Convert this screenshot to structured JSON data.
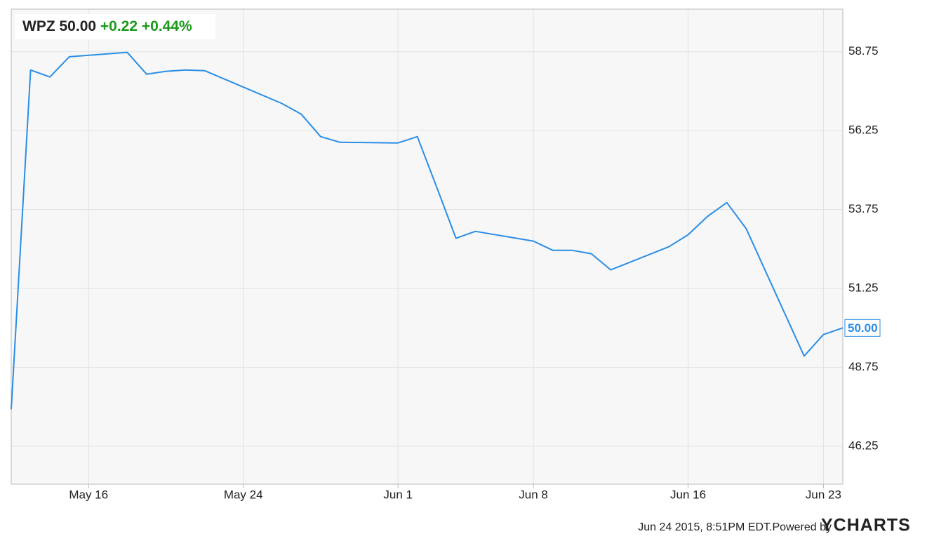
{
  "quote": {
    "symbol": "WPZ",
    "price": "50.00",
    "change": "+0.22",
    "change_percent": "+0.44%"
  },
  "chart_data": {
    "type": "line",
    "x": [
      "May 12",
      "May 13",
      "May 14",
      "May 15",
      "May 18",
      "May 19",
      "May 20",
      "May 21",
      "May 22",
      "May 26",
      "May 27",
      "May 28",
      "May 29",
      "Jun 1",
      "Jun 2",
      "Jun 3",
      "Jun 4",
      "Jun 5",
      "Jun 8",
      "Jun 9",
      "Jun 10",
      "Jun 11",
      "Jun 12",
      "Jun 15",
      "Jun 16",
      "Jun 17",
      "Jun 18",
      "Jun 19",
      "Jun 22",
      "Jun 23",
      "Jun 24"
    ],
    "series": [
      {
        "name": "WPZ",
        "color": "#2a8ee6",
        "values": [
          47.42,
          58.17,
          57.95,
          58.59,
          58.73,
          58.04,
          58.13,
          58.17,
          58.15,
          57.11,
          56.77,
          56.06,
          55.88,
          55.86,
          56.06,
          54.46,
          52.84,
          53.06,
          52.75,
          52.46,
          52.46,
          52.35,
          51.84,
          52.57,
          52.95,
          53.53,
          53.97,
          53.15,
          49.11,
          49.79,
          50.0
        ],
        "last_label": "50.00"
      }
    ],
    "xlim": [
      "May 12",
      "Jun 24"
    ],
    "xticks": [
      "May 16",
      "May 24",
      "Jun 1",
      "Jun 8",
      "Jun 16",
      "Jun 23"
    ],
    "ylim": [
      45.05,
      60.1
    ],
    "yticks": [
      46.25,
      48.75,
      51.25,
      53.75,
      56.25,
      58.75
    ],
    "grid": true
  },
  "footer": {
    "timestamp": "Jun 24 2015, 8:51PM EDT.",
    "powered_by": "Powered by",
    "brand": "YCHARTS"
  }
}
